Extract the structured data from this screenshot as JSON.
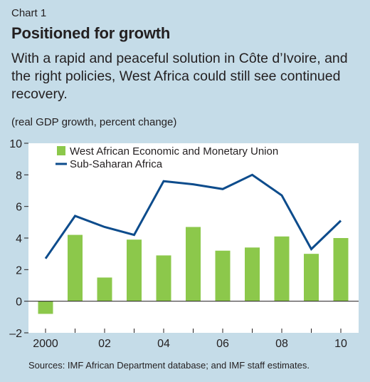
{
  "header": {
    "kicker": "Chart 1",
    "title": "Positioned for growth",
    "subtitle": "With a rapid and peaceful solution in Côte d’Ivoire, and the right policies, West Africa could still see continued recovery.",
    "unit": "(real GDP growth, percent change)"
  },
  "source": "Sources: IMF African Department database; and IMF staff estimates.",
  "colors": {
    "background": "#c5dce8",
    "plot_background": "#ffffff",
    "bar": "#8cc84b",
    "line": "#0d4c8c"
  },
  "chart_data": {
    "type": "bar",
    "title": "Positioned for growth",
    "ylabel": "(real GDP growth, percent change)",
    "xlabel": "",
    "ylim": [
      -2,
      10
    ],
    "yticks": [
      "10",
      "8",
      "6",
      "4",
      "2",
      "0",
      "–2"
    ],
    "ytick_values": [
      10,
      8,
      6,
      4,
      2,
      0,
      -2
    ],
    "grid": false,
    "legend_position": "top-left",
    "x": [
      2000,
      2001,
      2002,
      2003,
      2004,
      2005,
      2006,
      2007,
      2008,
      2009,
      2010
    ],
    "xtick_labels": [
      {
        "year": 2000,
        "label": "2000"
      },
      {
        "year": 2002,
        "label": "02"
      },
      {
        "year": 2004,
        "label": "04"
      },
      {
        "year": 2006,
        "label": "06"
      },
      {
        "year": 2008,
        "label": "08"
      },
      {
        "year": 2010,
        "label": "10"
      }
    ],
    "series": [
      {
        "name": "West African Economic and Monetary Union",
        "kind": "bar",
        "values": [
          -0.8,
          4.2,
          1.5,
          3.9,
          2.9,
          4.7,
          3.2,
          3.4,
          4.1,
          3.0,
          4.0
        ]
      },
      {
        "name": "Sub-Saharan Africa",
        "kind": "line",
        "values": [
          2.7,
          5.4,
          4.7,
          4.2,
          7.6,
          7.4,
          7.1,
          8.0,
          6.7,
          3.3,
          5.1
        ]
      }
    ]
  }
}
